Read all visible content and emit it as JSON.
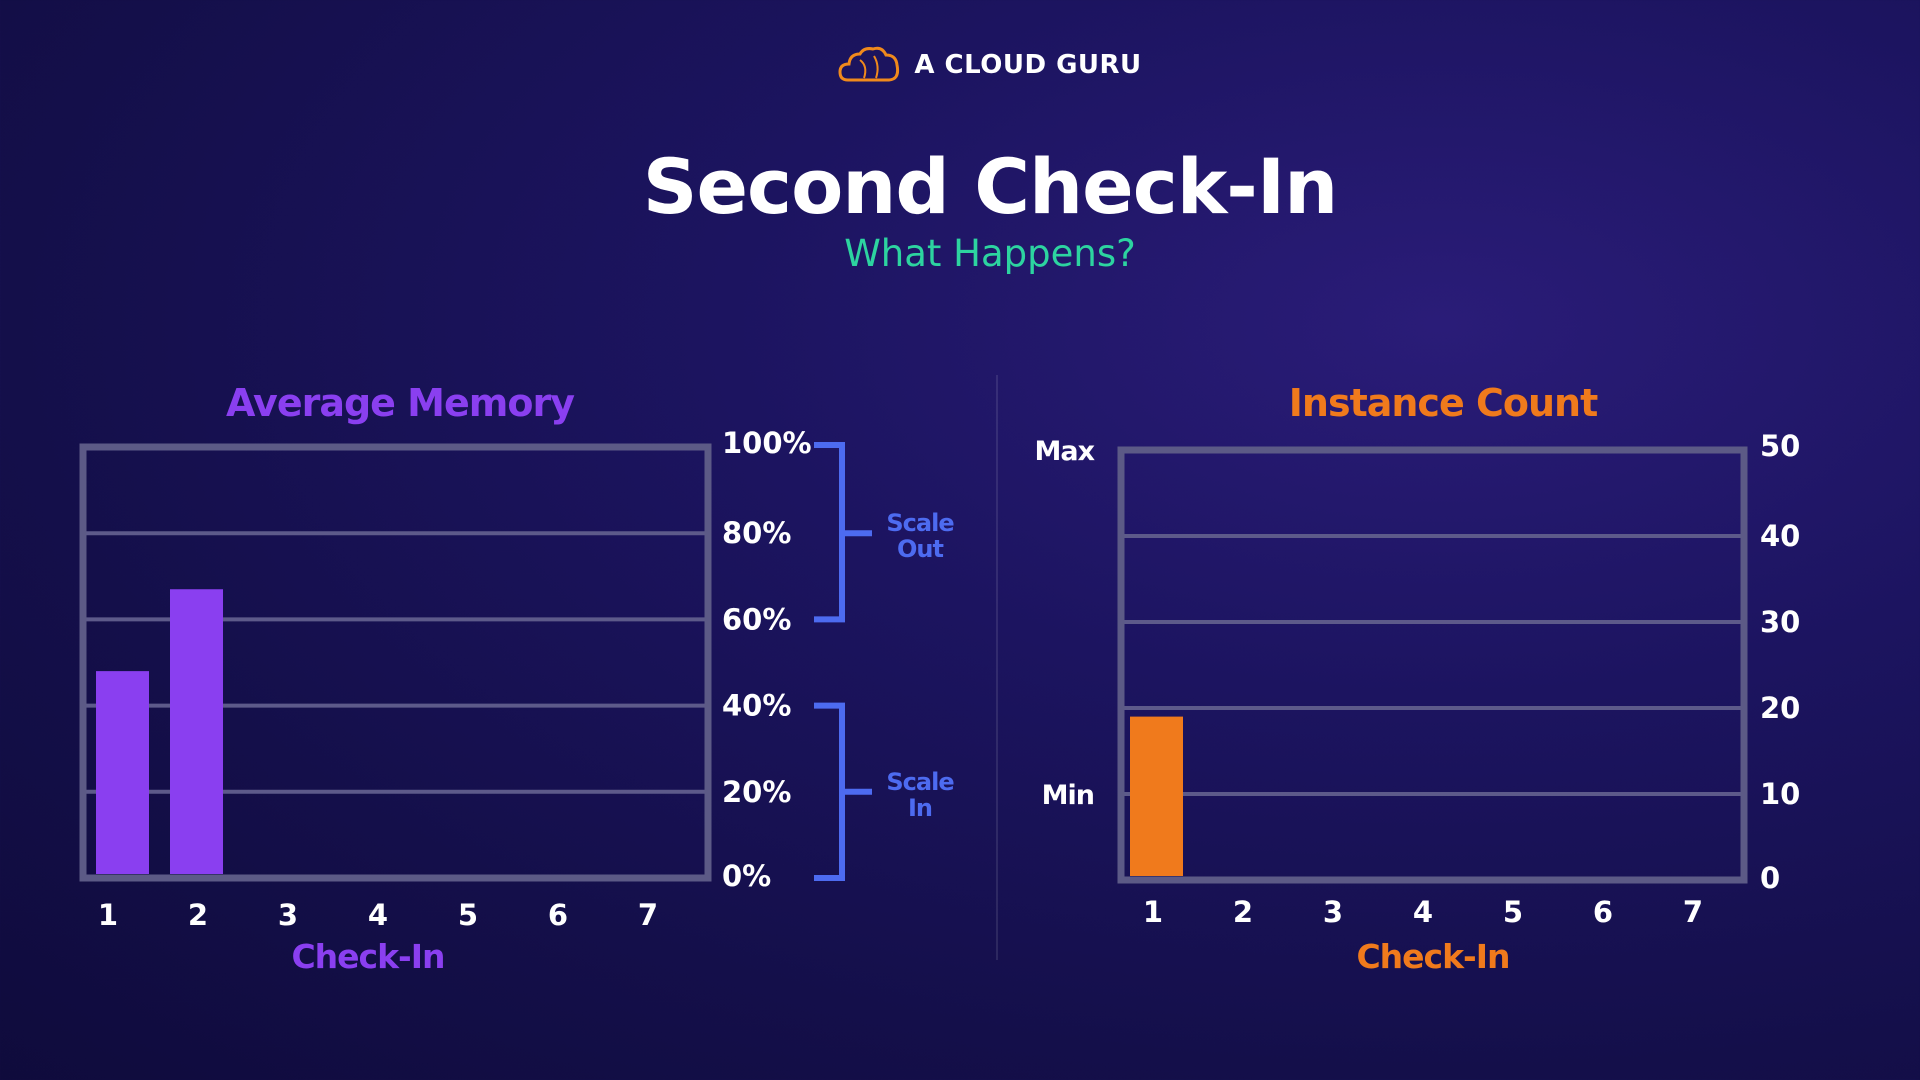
{
  "header": {
    "brand": "A CLOUD GURU",
    "title": "Second Check-In",
    "subtitle": "What Happens?"
  },
  "colors": {
    "memory": "#8a3ff0",
    "instance": "#f07a1c",
    "scale": "#4d6bf0",
    "subtitle": "#2dd4a0"
  },
  "chart_data": [
    {
      "type": "bar",
      "title": "Average Memory",
      "xlabel": "Check-In",
      "categories": [
        "1",
        "2",
        "3",
        "4",
        "5",
        "6",
        "7"
      ],
      "values": [
        48,
        67,
        null,
        null,
        null,
        null,
        null
      ],
      "ylim": [
        0,
        100
      ],
      "yticks": [
        "0%",
        "20%",
        "40%",
        "60%",
        "80%",
        "100%"
      ],
      "grid": true,
      "annotations": [
        {
          "label_line1": "Scale",
          "label_line2": "Out",
          "range": [
            60,
            100
          ]
        },
        {
          "label_line1": "Scale",
          "label_line2": "In",
          "range": [
            0,
            40
          ]
        }
      ]
    },
    {
      "type": "bar",
      "title": "Instance Count",
      "xlabel": "Check-In",
      "categories": [
        "1",
        "2",
        "3",
        "4",
        "5",
        "6",
        "7"
      ],
      "values": [
        19,
        null,
        null,
        null,
        null,
        null,
        null
      ],
      "ylim": [
        0,
        50
      ],
      "yticks": [
        "0",
        "10",
        "20",
        "30",
        "40",
        "50"
      ],
      "grid": true,
      "side_labels": [
        {
          "text": "Max",
          "value": 50
        },
        {
          "text": "Min",
          "value": 10
        }
      ]
    }
  ]
}
